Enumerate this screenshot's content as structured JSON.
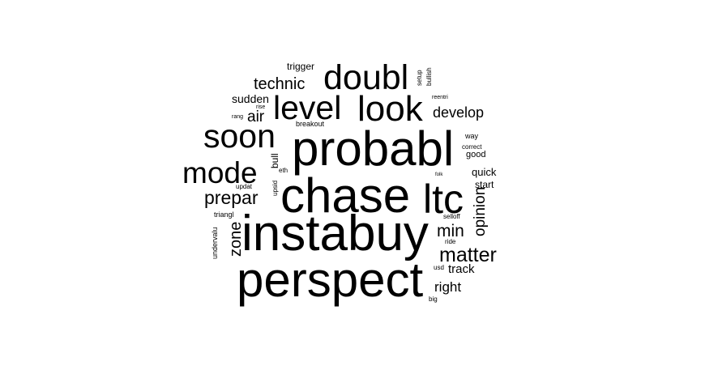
{
  "word_cloud": {
    "text_color": "#000000",
    "background": "#ffffff",
    "words": [
      {
        "id": "instabuy",
        "text": "instabuy"
      },
      {
        "id": "chase",
        "text": "chase"
      },
      {
        "id": "perspect",
        "text": "perspect"
      },
      {
        "id": "probabl",
        "text": "probabl"
      },
      {
        "id": "ltc",
        "text": "ltc"
      },
      {
        "id": "look",
        "text": "look"
      },
      {
        "id": "doubl",
        "text": "doubl"
      },
      {
        "id": "level",
        "text": "level"
      },
      {
        "id": "soon",
        "text": "soon"
      },
      {
        "id": "mode",
        "text": "mode"
      },
      {
        "id": "prepar",
        "text": "prepar"
      },
      {
        "id": "matter",
        "text": "matter"
      },
      {
        "id": "technic",
        "text": "technic"
      },
      {
        "id": "develop",
        "text": "develop"
      },
      {
        "id": "min",
        "text": "min"
      },
      {
        "id": "zone",
        "text": "zone"
      },
      {
        "id": "opinion",
        "text": "opinion"
      },
      {
        "id": "right",
        "text": "right"
      },
      {
        "id": "air",
        "text": "air"
      },
      {
        "id": "track",
        "text": "track"
      },
      {
        "id": "sudden",
        "text": "sudden"
      },
      {
        "id": "quick",
        "text": "quick"
      },
      {
        "id": "trigger",
        "text": "trigger"
      },
      {
        "id": "bull",
        "text": "bull"
      },
      {
        "id": "start",
        "text": "start"
      },
      {
        "id": "good",
        "text": "good"
      },
      {
        "id": "breakout",
        "text": "breakout"
      },
      {
        "id": "setup",
        "text": "setup"
      },
      {
        "id": "bullish",
        "text": "bullish"
      },
      {
        "id": "correct",
        "text": "correct"
      },
      {
        "id": "way",
        "text": "way"
      },
      {
        "id": "eth",
        "text": "eth"
      },
      {
        "id": "upsid",
        "text": "upsid"
      },
      {
        "id": "updat",
        "text": "updat"
      },
      {
        "id": "triangl",
        "text": "triangl"
      },
      {
        "id": "undervalu",
        "text": "undervalu"
      },
      {
        "id": "selloff",
        "text": "selloff"
      },
      {
        "id": "ride",
        "text": "ride"
      },
      {
        "id": "usd",
        "text": "usd"
      },
      {
        "id": "big",
        "text": "big"
      },
      {
        "id": "reentri",
        "text": "reentri"
      },
      {
        "id": "rise",
        "text": "rise"
      },
      {
        "id": "rang",
        "text": "rang"
      },
      {
        "id": "folk",
        "text": "folk"
      }
    ]
  }
}
